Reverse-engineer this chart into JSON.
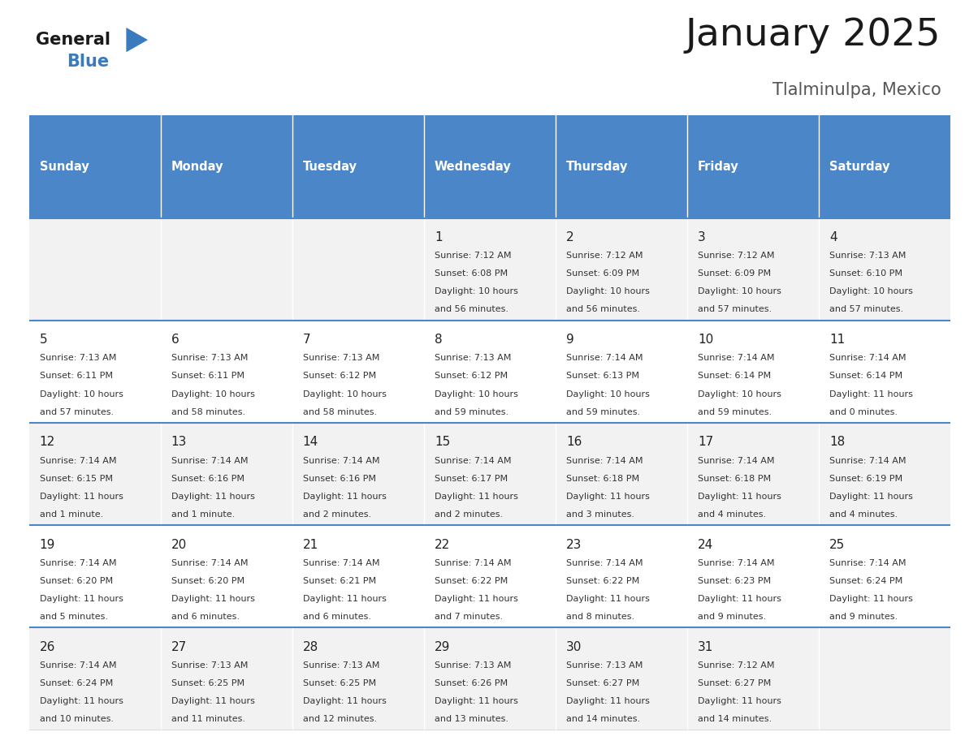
{
  "title": "January 2025",
  "subtitle": "Tlalminulpa, Mexico",
  "header_bg": "#4a86c8",
  "header_text": "#ffffff",
  "row_bg": [
    "#f2f2f2",
    "#ffffff",
    "#f2f2f2",
    "#ffffff",
    "#f2f2f2"
  ],
  "border_color": "#4a86c8",
  "text_color": "#333333",
  "day_num_color": "#222222",
  "day_names": [
    "Sunday",
    "Monday",
    "Tuesday",
    "Wednesday",
    "Thursday",
    "Friday",
    "Saturday"
  ],
  "days": [
    {
      "day": 1,
      "col": 3,
      "row": 0,
      "sunrise": "7:12 AM",
      "sunset": "6:08 PM",
      "daylight": "10 hours",
      "daylight2": "and 56 minutes."
    },
    {
      "day": 2,
      "col": 4,
      "row": 0,
      "sunrise": "7:12 AM",
      "sunset": "6:09 PM",
      "daylight": "10 hours",
      "daylight2": "and 56 minutes."
    },
    {
      "day": 3,
      "col": 5,
      "row": 0,
      "sunrise": "7:12 AM",
      "sunset": "6:09 PM",
      "daylight": "10 hours",
      "daylight2": "and 57 minutes."
    },
    {
      "day": 4,
      "col": 6,
      "row": 0,
      "sunrise": "7:13 AM",
      "sunset": "6:10 PM",
      "daylight": "10 hours",
      "daylight2": "and 57 minutes."
    },
    {
      "day": 5,
      "col": 0,
      "row": 1,
      "sunrise": "7:13 AM",
      "sunset": "6:11 PM",
      "daylight": "10 hours",
      "daylight2": "and 57 minutes."
    },
    {
      "day": 6,
      "col": 1,
      "row": 1,
      "sunrise": "7:13 AM",
      "sunset": "6:11 PM",
      "daylight": "10 hours",
      "daylight2": "and 58 minutes."
    },
    {
      "day": 7,
      "col": 2,
      "row": 1,
      "sunrise": "7:13 AM",
      "sunset": "6:12 PM",
      "daylight": "10 hours",
      "daylight2": "and 58 minutes."
    },
    {
      "day": 8,
      "col": 3,
      "row": 1,
      "sunrise": "7:13 AM",
      "sunset": "6:12 PM",
      "daylight": "10 hours",
      "daylight2": "and 59 minutes."
    },
    {
      "day": 9,
      "col": 4,
      "row": 1,
      "sunrise": "7:14 AM",
      "sunset": "6:13 PM",
      "daylight": "10 hours",
      "daylight2": "and 59 minutes."
    },
    {
      "day": 10,
      "col": 5,
      "row": 1,
      "sunrise": "7:14 AM",
      "sunset": "6:14 PM",
      "daylight": "10 hours",
      "daylight2": "and 59 minutes."
    },
    {
      "day": 11,
      "col": 6,
      "row": 1,
      "sunrise": "7:14 AM",
      "sunset": "6:14 PM",
      "daylight": "11 hours",
      "daylight2": "and 0 minutes."
    },
    {
      "day": 12,
      "col": 0,
      "row": 2,
      "sunrise": "7:14 AM",
      "sunset": "6:15 PM",
      "daylight": "11 hours",
      "daylight2": "and 1 minute."
    },
    {
      "day": 13,
      "col": 1,
      "row": 2,
      "sunrise": "7:14 AM",
      "sunset": "6:16 PM",
      "daylight": "11 hours",
      "daylight2": "and 1 minute."
    },
    {
      "day": 14,
      "col": 2,
      "row": 2,
      "sunrise": "7:14 AM",
      "sunset": "6:16 PM",
      "daylight": "11 hours",
      "daylight2": "and 2 minutes."
    },
    {
      "day": 15,
      "col": 3,
      "row": 2,
      "sunrise": "7:14 AM",
      "sunset": "6:17 PM",
      "daylight": "11 hours",
      "daylight2": "and 2 minutes."
    },
    {
      "day": 16,
      "col": 4,
      "row": 2,
      "sunrise": "7:14 AM",
      "sunset": "6:18 PM",
      "daylight": "11 hours",
      "daylight2": "and 3 minutes."
    },
    {
      "day": 17,
      "col": 5,
      "row": 2,
      "sunrise": "7:14 AM",
      "sunset": "6:18 PM",
      "daylight": "11 hours",
      "daylight2": "and 4 minutes."
    },
    {
      "day": 18,
      "col": 6,
      "row": 2,
      "sunrise": "7:14 AM",
      "sunset": "6:19 PM",
      "daylight": "11 hours",
      "daylight2": "and 4 minutes."
    },
    {
      "day": 19,
      "col": 0,
      "row": 3,
      "sunrise": "7:14 AM",
      "sunset": "6:20 PM",
      "daylight": "11 hours",
      "daylight2": "and 5 minutes."
    },
    {
      "day": 20,
      "col": 1,
      "row": 3,
      "sunrise": "7:14 AM",
      "sunset": "6:20 PM",
      "daylight": "11 hours",
      "daylight2": "and 6 minutes."
    },
    {
      "day": 21,
      "col": 2,
      "row": 3,
      "sunrise": "7:14 AM",
      "sunset": "6:21 PM",
      "daylight": "11 hours",
      "daylight2": "and 6 minutes."
    },
    {
      "day": 22,
      "col": 3,
      "row": 3,
      "sunrise": "7:14 AM",
      "sunset": "6:22 PM",
      "daylight": "11 hours",
      "daylight2": "and 7 minutes."
    },
    {
      "day": 23,
      "col": 4,
      "row": 3,
      "sunrise": "7:14 AM",
      "sunset": "6:22 PM",
      "daylight": "11 hours",
      "daylight2": "and 8 minutes."
    },
    {
      "day": 24,
      "col": 5,
      "row": 3,
      "sunrise": "7:14 AM",
      "sunset": "6:23 PM",
      "daylight": "11 hours",
      "daylight2": "and 9 minutes."
    },
    {
      "day": 25,
      "col": 6,
      "row": 3,
      "sunrise": "7:14 AM",
      "sunset": "6:24 PM",
      "daylight": "11 hours",
      "daylight2": "and 9 minutes."
    },
    {
      "day": 26,
      "col": 0,
      "row": 4,
      "sunrise": "7:14 AM",
      "sunset": "6:24 PM",
      "daylight": "11 hours",
      "daylight2": "and 10 minutes."
    },
    {
      "day": 27,
      "col": 1,
      "row": 4,
      "sunrise": "7:13 AM",
      "sunset": "6:25 PM",
      "daylight": "11 hours",
      "daylight2": "and 11 minutes."
    },
    {
      "day": 28,
      "col": 2,
      "row": 4,
      "sunrise": "7:13 AM",
      "sunset": "6:25 PM",
      "daylight": "11 hours",
      "daylight2": "and 12 minutes."
    },
    {
      "day": 29,
      "col": 3,
      "row": 4,
      "sunrise": "7:13 AM",
      "sunset": "6:26 PM",
      "daylight": "11 hours",
      "daylight2": "and 13 minutes."
    },
    {
      "day": 30,
      "col": 4,
      "row": 4,
      "sunrise": "7:13 AM",
      "sunset": "6:27 PM",
      "daylight": "11 hours",
      "daylight2": "and 14 minutes."
    },
    {
      "day": 31,
      "col": 5,
      "row": 4,
      "sunrise": "7:12 AM",
      "sunset": "6:27 PM",
      "daylight": "11 hours",
      "daylight2": "and 14 minutes."
    }
  ]
}
